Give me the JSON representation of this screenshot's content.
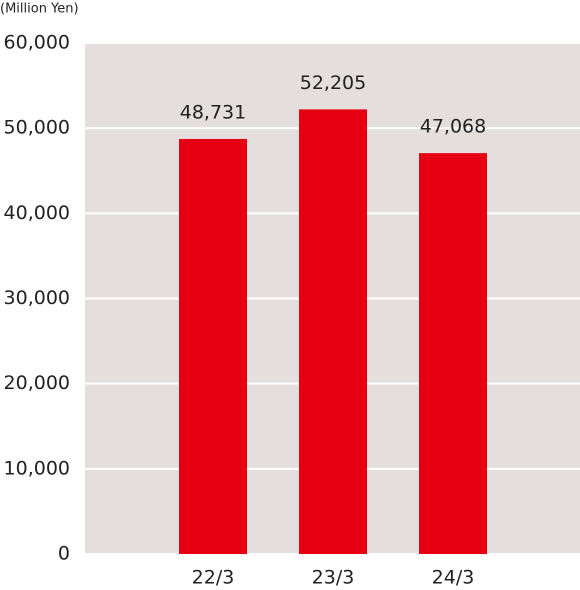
{
  "chart_data": {
    "type": "bar",
    "y_axis_label": "(Million Yen)",
    "categories": [
      "22/3",
      "23/3",
      "24/3"
    ],
    "values": [
      48731,
      52205,
      47068
    ],
    "value_labels": [
      "48,731",
      "52,205",
      "47,068"
    ],
    "color": "#e60012",
    "ylim": [
      0,
      60000
    ],
    "yticks": [
      0,
      {
        "value": 10000,
        "label": "10,000"
      },
      {
        "value": 20000,
        "label": "20,000"
      },
      {
        "value": 30000,
        "label": "30,000"
      },
      {
        "value": 40000,
        "label": "40,000"
      },
      {
        "value": 50000,
        "label": "50,000"
      },
      {
        "value": 60000,
        "label": "60,000"
      }
    ],
    "grid": true
  }
}
